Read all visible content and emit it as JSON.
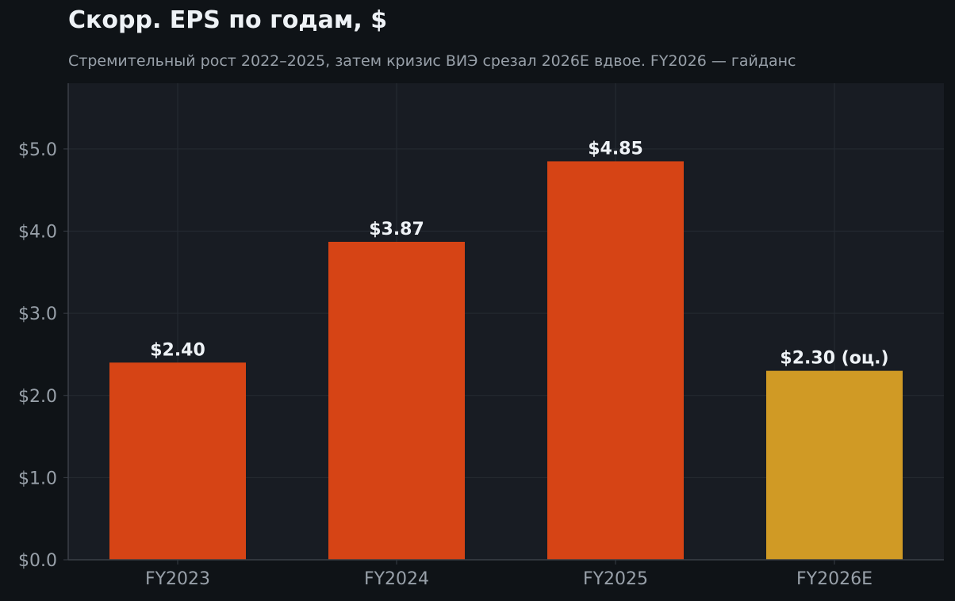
{
  "title": "Скорр. EPS по годам, $",
  "subtitle": "Стремительный рост 2022–2025, затем кризис ВИЭ срезал 2026E вдвое. FY2026 — гайданс",
  "chart_data": {
    "type": "bar",
    "title": "Скорр. EPS по годам, $",
    "subtitle": "Стремительный рост 2022–2025, затем кризис ВИЭ срезал 2026E вдвое. FY2026 — гайданс",
    "categories": [
      "FY2023",
      "FY2024",
      "FY2025",
      "FY2026E"
    ],
    "values": [
      2.4,
      3.87,
      4.85,
      2.3
    ],
    "value_labels": [
      "$2.40",
      "$3.87",
      "$4.85",
      "$2.30 (оц.)"
    ],
    "bar_colors": [
      "#d64415",
      "#d64415",
      "#d64415",
      "#d09a25"
    ],
    "ylim": [
      0,
      5.8
    ],
    "yticks": [
      0,
      1,
      2,
      3,
      4,
      5
    ],
    "ytick_labels": [
      "$0.0",
      "$1.0",
      "$2.0",
      "$3.0",
      "$4.0",
      "$5.0"
    ],
    "xlabel": "",
    "ylabel": "",
    "grid": true
  },
  "colors": {
    "background": "#0f1317",
    "plot_background": "#181c23",
    "grid": "#262b33",
    "axis": "#3a3f47",
    "tick_text": "#98a0a9",
    "value_label": "#eef2f6"
  }
}
